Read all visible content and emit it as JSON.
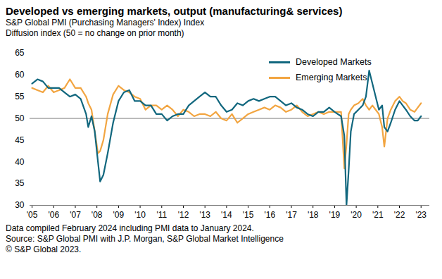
{
  "chart_data": {
    "type": "line",
    "title": "Developed vs emerging markets, output (manufacturing& services)",
    "subtitle": [
      "S&P Global PMI (Purchasing Managers' Index) Index",
      "Diffusion index (50 = no change on prior month)"
    ],
    "caption": [
      "Data compiled February 2024 including PMI data to January 2024.",
      "Source: S&P Global PMI with J.P. Morgan, S&P Global Market Intelligence",
      "© S&P Global 2023."
    ],
    "x": [
      2005.0,
      2005.25,
      2005.5,
      2005.75,
      2006.0,
      2006.25,
      2006.5,
      2006.75,
      2007.0,
      2007.25,
      2007.5,
      2007.6,
      2007.75,
      2007.9,
      2008.05,
      2008.15,
      2008.3,
      2008.5,
      2008.75,
      2009.0,
      2009.25,
      2009.5,
      2009.75,
      2010.0,
      2010.25,
      2010.5,
      2010.75,
      2011.0,
      2011.25,
      2011.5,
      2011.75,
      2012.0,
      2012.25,
      2012.5,
      2012.75,
      2013.0,
      2013.25,
      2013.5,
      2013.75,
      2014.0,
      2014.25,
      2014.5,
      2014.75,
      2015.0,
      2015.25,
      2015.5,
      2015.75,
      2016.0,
      2016.25,
      2016.5,
      2016.75,
      2017.0,
      2017.25,
      2017.5,
      2017.75,
      2018.0,
      2018.25,
      2018.5,
      2018.75,
      2019.0,
      2019.3,
      2019.45,
      2019.55,
      2019.65,
      2019.75,
      2019.9,
      2020.1,
      2020.3,
      2020.45,
      2020.6,
      2020.75,
      2020.9,
      2021.05,
      2021.2,
      2021.3,
      2021.45,
      2021.6,
      2021.8,
      2022.0,
      2022.15,
      2022.3,
      2022.5,
      2022.7,
      2022.85,
      2023.0
    ],
    "series": [
      {
        "name": "Developed Markets",
        "color": "#11677e",
        "values": [
          58,
          59,
          58.5,
          57,
          57,
          57,
          56,
          55,
          55.5,
          54.5,
          51,
          48,
          50.5,
          47,
          40,
          35.5,
          37,
          42,
          49,
          54,
          56,
          56.5,
          54,
          54,
          53,
          53,
          51,
          51,
          49.5,
          50.5,
          51,
          51,
          53,
          54,
          55,
          56,
          55,
          55,
          53,
          51.5,
          52,
          53.5,
          53,
          54,
          54.5,
          54,
          54.5,
          55,
          55,
          54,
          53,
          53.5,
          52.5,
          52,
          51,
          50.5,
          51.5,
          51.5,
          52.5,
          51.5,
          50.5,
          46,
          30,
          38,
          47,
          51,
          52,
          53,
          55,
          61,
          58,
          55,
          52,
          53,
          48,
          47,
          49,
          52,
          54,
          53,
          52,
          50.5,
          49.5,
          49.5,
          50.5
        ]
      },
      {
        "name": "Emerging Markets",
        "color": "#f2a541",
        "values": [
          57,
          56.5,
          56,
          57.5,
          56,
          56.5,
          57,
          59,
          57,
          57,
          55,
          53.5,
          52,
          47,
          42,
          42.5,
          45,
          51,
          55.5,
          57.5,
          56.5,
          56,
          55,
          54.5,
          52,
          53,
          53,
          52,
          53,
          52,
          50.5,
          52,
          51.5,
          50.5,
          51,
          51,
          50.5,
          51.5,
          50,
          49.5,
          51,
          49,
          50,
          51,
          51.5,
          52,
          52.5,
          52,
          53,
          52.5,
          51.5,
          52,
          53,
          51.5,
          50.5,
          51,
          51.5,
          51,
          51.5,
          51.5,
          51.5,
          38.5,
          44,
          51,
          52,
          53,
          53.5,
          54.5,
          53,
          52,
          53,
          52,
          51,
          48,
          43.5,
          50,
          52,
          54,
          55,
          54,
          53.5,
          52,
          51.5,
          52.5,
          53.5
        ]
      }
    ],
    "reference_line": 50,
    "xlim": [
      2004.9,
      2023.4
    ],
    "xticks": [
      {
        "value": 2005,
        "label": "'05"
      },
      {
        "value": 2006,
        "label": "'06"
      },
      {
        "value": 2007,
        "label": "'07"
      },
      {
        "value": 2008,
        "label": "'08"
      },
      {
        "value": 2009,
        "label": "'09"
      },
      {
        "value": 2010,
        "label": "'10"
      },
      {
        "value": 2011,
        "label": "'11"
      },
      {
        "value": 2012,
        "label": "'12"
      },
      {
        "value": 2013,
        "label": "'13"
      },
      {
        "value": 2014,
        "label": "'14"
      },
      {
        "value": 2015,
        "label": "'15"
      },
      {
        "value": 2016,
        "label": "'16"
      },
      {
        "value": 2017,
        "label": "'17"
      },
      {
        "value": 2018,
        "label": "'18"
      },
      {
        "value": 2019,
        "label": "'19"
      },
      {
        "value": 2020,
        "label": "'20"
      },
      {
        "value": 2021,
        "label": "'21"
      },
      {
        "value": 2022,
        "label": "'22"
      },
      {
        "value": 2023,
        "label": "'23"
      }
    ],
    "ylim": [
      30,
      65
    ],
    "yticks": [
      30,
      35,
      40,
      45,
      50,
      55,
      60,
      65
    ],
    "grid": false,
    "legend": "top-right"
  }
}
